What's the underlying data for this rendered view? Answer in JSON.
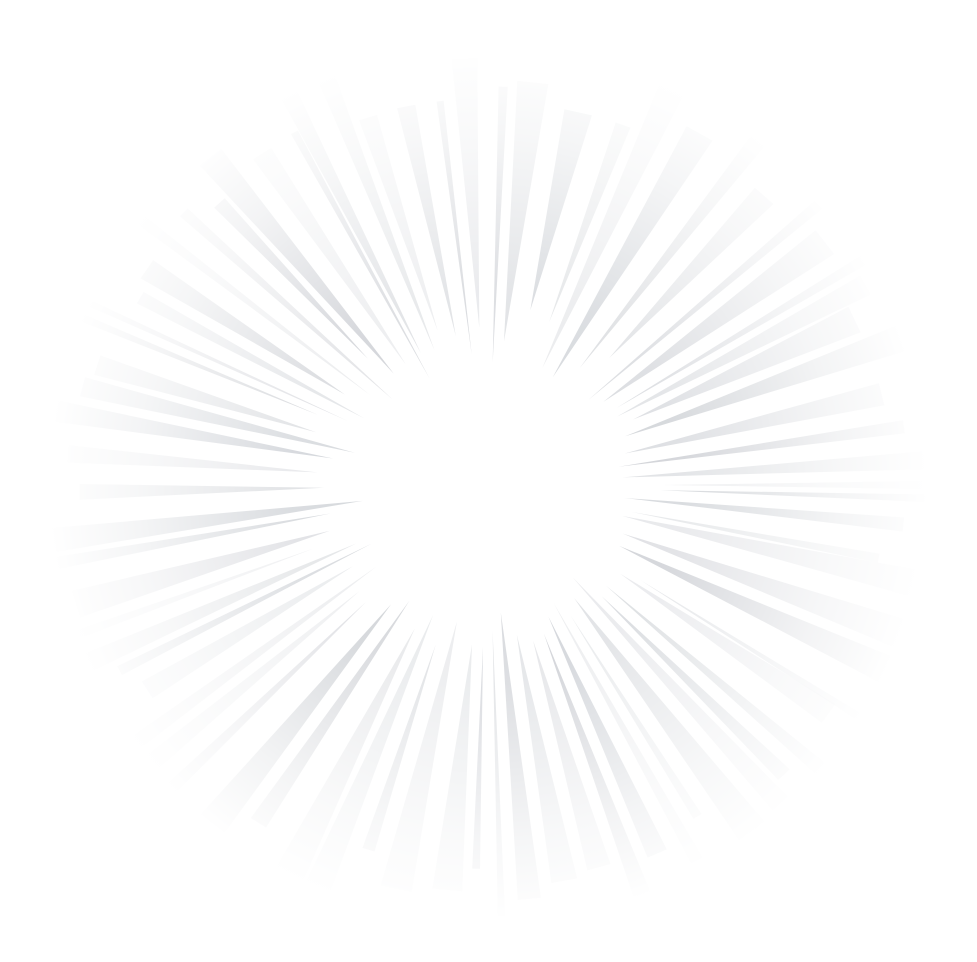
{
  "graphic": {
    "kind": "radial-speed-lines-burst",
    "colors": {
      "background": "#ffffff",
      "ray": "#b9bdc4",
      "center": "#ffffff"
    }
  }
}
